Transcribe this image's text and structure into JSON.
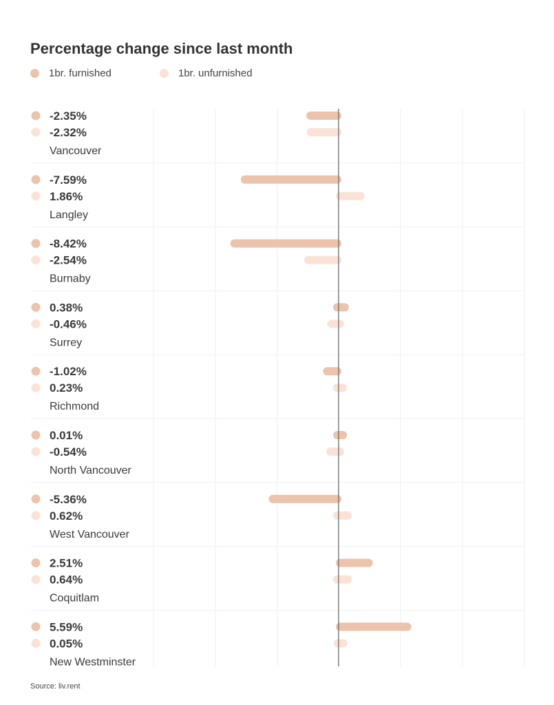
{
  "chart_data": {
    "type": "bar",
    "orientation": "horizontal",
    "title": "Percentage change since last month",
    "categories": [
      "Vancouver",
      "Langley",
      "Burnaby",
      "Surrey",
      "Richmond",
      "North Vancouver",
      "West Vancouver",
      "Coquitlam",
      "New Westminster"
    ],
    "series": [
      {
        "name": "1br. furnished",
        "color": "#ecc3ac",
        "values": [
          -2.35,
          -7.59,
          -8.42,
          0.38,
          -1.02,
          0.01,
          -5.36,
          2.51,
          5.59
        ],
        "labels": [
          "-2.35%",
          "-7.59%",
          "-8.42%",
          "0.38%",
          "-1.02%",
          "0.01%",
          "-5.36%",
          "2.51%",
          "5.59%"
        ]
      },
      {
        "name": "1br. unfurnished",
        "color": "#fae3d6",
        "values": [
          -2.32,
          1.86,
          -2.54,
          -0.46,
          0.23,
          -0.54,
          0.62,
          0.64,
          0.05
        ],
        "labels": [
          "-2.32%",
          "1.86%",
          "-2.54%",
          "-0.46%",
          "0.23%",
          "-0.54%",
          "0.62%",
          "0.64%",
          "0.05%"
        ]
      }
    ],
    "xlim": [
      -10,
      15
    ],
    "grid": true,
    "legend_position": "top-left"
  },
  "source": "Source: liv.rent",
  "colors": {
    "grid": "#ededed",
    "axis": "#6b6b6b",
    "value_text": "#3a3a3a",
    "category_text": "#3a3a3a"
  }
}
